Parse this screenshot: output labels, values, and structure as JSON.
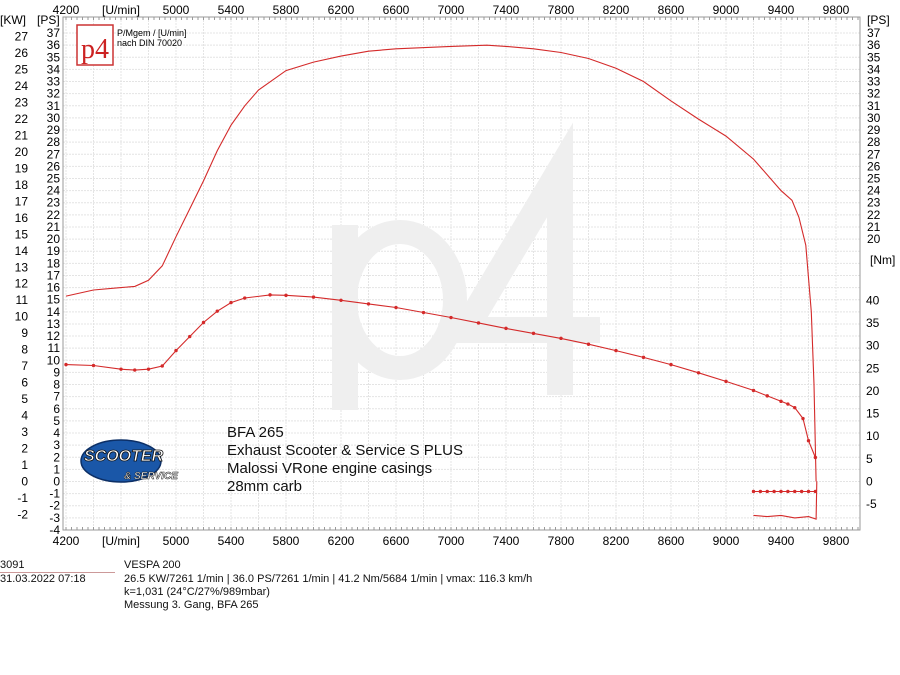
{
  "chart_data": {
    "type": "line",
    "x_axis": {
      "label": "[U/min]",
      "range": [
        4200,
        9975
      ],
      "ticks": [
        4200,
        5000,
        5400,
        5800,
        6200,
        6600,
        7000,
        7400,
        7800,
        8200,
        8600,
        9000,
        9400,
        9800
      ]
    },
    "y_axes": {
      "kw": {
        "label": "[KW]",
        "range": [
          -2,
          27
        ],
        "side": "left-outer"
      },
      "ps_left": {
        "label": "[PS]",
        "range": [
          -4,
          37
        ],
        "side": "left"
      },
      "ps_right": {
        "label": "[PS]",
        "range": [
          20,
          37
        ],
        "side": "right"
      },
      "nm": {
        "label": "[Nm]",
        "ticks": [
          -5,
          0,
          5,
          10,
          15,
          20,
          25,
          30,
          35,
          40
        ],
        "side": "right"
      }
    },
    "grid": true,
    "series": [
      {
        "axis": "ps",
        "color": "#d42a2a",
        "markers": false,
        "x": [
          4200,
          4400,
          4600,
          4700,
          4800,
          4900,
          5000,
          5100,
          5200,
          5300,
          5400,
          5500,
          5600,
          5800,
          6000,
          6200,
          6400,
          6600,
          7000,
          7261,
          7400,
          7600,
          7800,
          8000,
          8200,
          8400,
          8600,
          8800,
          9000,
          9200,
          9400,
          9480,
          9530,
          9580,
          9620,
          9640,
          9655
        ],
        "y": [
          15.3,
          15.8,
          16.0,
          16.1,
          16.6,
          17.8,
          20.2,
          22.5,
          24.8,
          27.3,
          29.4,
          31.0,
          32.3,
          33.9,
          34.6,
          35.1,
          35.5,
          35.7,
          35.9,
          36.0,
          35.9,
          35.7,
          35.4,
          34.9,
          34.1,
          33.0,
          31.4,
          29.9,
          28.5,
          26.6,
          24.0,
          23.2,
          21.8,
          19.5,
          14.0,
          8.0,
          0.0
        ]
      },
      {
        "axis": "ps",
        "color": "#d42a2a",
        "markers": false,
        "x": [
          9200,
          9300,
          9400,
          9500,
          9600,
          9655,
          9660
        ],
        "y": [
          -2.8,
          -2.9,
          -2.8,
          -3.0,
          -2.9,
          -3.1,
          0.0
        ]
      },
      {
        "axis": "nm",
        "color": "#d42a2a",
        "markers": true,
        "x": [
          4200,
          4400,
          4600,
          4700,
          4800,
          4900,
          5000,
          5100,
          5200,
          5300,
          5400,
          5500,
          5684,
          5800,
          6000,
          6200,
          6400,
          6600,
          6800,
          7000,
          7200,
          7400,
          7600,
          7800,
          8000,
          8200,
          8400,
          8600,
          8800,
          9000,
          9200,
          9300,
          9400,
          9450,
          9500,
          9560,
          9600,
          9650
        ],
        "y": [
          25.8,
          25.6,
          24.8,
          24.6,
          24.8,
          25.5,
          28.9,
          32.0,
          35.1,
          37.6,
          39.5,
          40.5,
          41.2,
          41.1,
          40.7,
          40.0,
          39.2,
          38.4,
          37.3,
          36.2,
          35.0,
          33.8,
          32.7,
          31.6,
          30.3,
          28.9,
          27.4,
          25.8,
          24.0,
          22.1,
          20.1,
          18.9,
          17.7,
          17.1,
          16.3,
          13.9,
          9.0,
          5.3
        ]
      },
      {
        "axis": "nm",
        "color": "#d42a2a",
        "markers": true,
        "x": [
          9200,
          9250,
          9300,
          9350,
          9400,
          9450,
          9500,
          9550,
          9600,
          9650
        ],
        "y": [
          -2.2,
          -2.2,
          -2.2,
          -2.2,
          -2.2,
          -2.2,
          -2.2,
          -2.2,
          -2.2,
          -2.2
        ]
      }
    ]
  },
  "legend_box": {
    "logo_text": "p4",
    "line1": "P/Mgem / [U/min]",
    "line2": "nach DIN 70020"
  },
  "watermark": "p4",
  "brand_logo": {
    "line1": "SCOOTER",
    "line2": "& SERVICE"
  },
  "annotation": [
    "BFA 265",
    "Exhaust Scooter & Service S PLUS",
    "Malossi VRone engine casings",
    "28mm carb"
  ],
  "info": {
    "id": "3091",
    "datetime": "31.03.2022  07:18",
    "vehicle": "VESPA 200",
    "results": "26.5 KW/7261 1/min  |  36.0 PS/7261 1/min  |  41.2 Nm/5684 1/min | vmax: 116.3 km/h",
    "correction": "k=1,031 (24°C/27%/989mbar)",
    "note": "Messung 3. Gang, BFA 265"
  }
}
